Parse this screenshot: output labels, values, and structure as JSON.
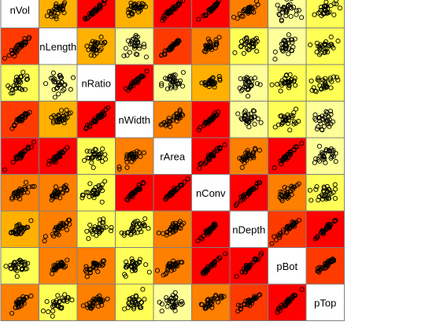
{
  "chart_data": {
    "type": "scatter",
    "variables": [
      "nVol",
      "nLength",
      "nRatio",
      "nWidth",
      "rArea",
      "nConv",
      "nDepth",
      "pBot",
      "pTop"
    ],
    "cell_colors": {
      "red": "#ff0000",
      "orange_red": "#ff3a00",
      "orange": "#ff7f00",
      "light_orange": "#ffb000",
      "yellow": "#ffff55",
      "pale_yellow": "#ffff99",
      "diagonal": "#ffffff"
    },
    "cell_color_matrix": [
      [
        "diagonal",
        "light_orange",
        "red",
        "light_orange",
        "red",
        "red",
        "orange",
        "pale_yellow",
        "yellow"
      ],
      [
        "orange_red",
        "diagonal",
        "light_orange",
        "pale_yellow",
        "orange_red",
        "orange",
        "yellow",
        "pale_yellow",
        "yellow"
      ],
      [
        "yellow",
        "pale_yellow",
        "diagonal",
        "red",
        "pale_yellow",
        "light_orange",
        "pale_yellow",
        "yellow",
        "yellow"
      ],
      [
        "orange_red",
        "light_orange",
        "red",
        "diagonal",
        "orange",
        "red",
        "pale_yellow",
        "yellow",
        "pale_yellow"
      ],
      [
        "red",
        "red",
        "yellow",
        "orange",
        "diagonal",
        "red",
        "orange",
        "red",
        "pale_yellow"
      ],
      [
        "orange",
        "orange",
        "yellow",
        "red",
        "red",
        "diagonal",
        "red",
        "orange",
        "yellow"
      ],
      [
        "light_orange",
        "orange",
        "yellow",
        "yellow",
        "orange",
        "red",
        "diagonal",
        "orange_red",
        "red"
      ],
      [
        "yellow",
        "orange",
        "orange",
        "yellow",
        "orange",
        "red",
        "red",
        "diagonal",
        "orange_red"
      ],
      [
        "orange",
        "yellow",
        "orange",
        "yellow",
        "pale_yellow",
        "orange",
        "orange_red",
        "red",
        "diagonal"
      ]
    ],
    "correlation_strength_matrix": [
      [
        1.0,
        0.45,
        0.95,
        0.45,
        0.95,
        0.95,
        0.6,
        0.1,
        0.2
      ],
      [
        0.85,
        1.0,
        0.45,
        0.1,
        0.85,
        0.6,
        0.2,
        0.1,
        0.2
      ],
      [
        0.2,
        0.1,
        1.0,
        0.95,
        0.1,
        0.45,
        0.1,
        0.2,
        0.2
      ],
      [
        0.85,
        0.45,
        0.95,
        1.0,
        0.6,
        0.95,
        0.1,
        0.2,
        0.1
      ],
      [
        0.95,
        0.95,
        0.2,
        0.6,
        1.0,
        0.95,
        0.6,
        0.95,
        0.1
      ],
      [
        0.6,
        0.6,
        0.2,
        0.95,
        0.95,
        1.0,
        0.95,
        0.6,
        0.2
      ],
      [
        0.45,
        0.6,
        0.2,
        0.2,
        0.6,
        0.95,
        1.0,
        0.85,
        0.95
      ],
      [
        0.2,
        0.6,
        0.6,
        0.2,
        0.6,
        0.95,
        0.95,
        1.0,
        0.85
      ],
      [
        0.6,
        0.2,
        0.6,
        0.2,
        0.1,
        0.6,
        0.85,
        0.95,
        1.0
      ]
    ],
    "points_per_panel": 30,
    "point_marker": "open-circle",
    "title": "",
    "legend": "none",
    "grid": false
  }
}
